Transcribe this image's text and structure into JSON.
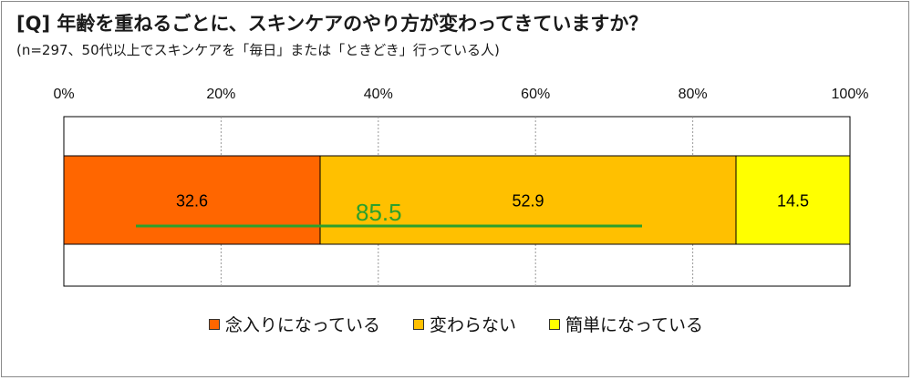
{
  "title": "[Q] 年齢を重ねるごとに、スキンケアのやり方が変わってきていますか？",
  "subtitle": "(n=297、50代以上でスキンケアを「毎日」または「ときどき」行っている人)",
  "chart_data": {
    "type": "bar",
    "stacked": true,
    "orientation": "horizontal",
    "percent_scale": true,
    "xlim": [
      0,
      100
    ],
    "tick_labels": [
      "0%",
      "20%",
      "40%",
      "60%",
      "80%",
      "100%"
    ],
    "grid": true,
    "series": [
      {
        "name": "念入りになっている",
        "values": [
          32.6
        ],
        "label": "32.6",
        "color": "#ff6600"
      },
      {
        "name": "変わらない",
        "values": [
          52.9
        ],
        "label": "52.9",
        "color": "#ffc000"
      },
      {
        "name": "簡単になっている",
        "values": [
          14.5
        ],
        "label": "14.5",
        "color": "#ffff00"
      }
    ],
    "annotation": {
      "text": "85.5",
      "color": "#2ca02c"
    },
    "legend_position": "bottom"
  }
}
